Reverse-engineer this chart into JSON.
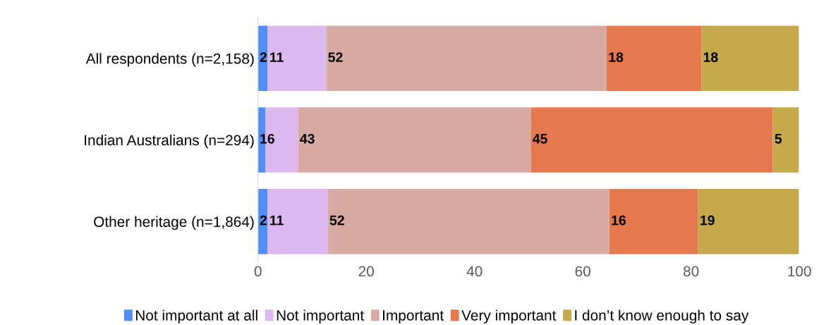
{
  "chart_data": {
    "type": "bar",
    "orientation": "horizontal",
    "stacked": true,
    "categories": [
      "All respondents (n=2,158)",
      "Indian Australians (n=294)",
      "Other heritage (n=1,864)"
    ],
    "series": [
      {
        "name": "Not important at all",
        "color": "#4f8ff7",
        "values": [
          1.8,
          1.4,
          1.8
        ],
        "value_labels": [
          "2",
          "1",
          "2"
        ]
      },
      {
        "name": "Not important",
        "color": "#dcb8ef",
        "values": [
          10.8,
          6.0,
          11.1
        ],
        "value_labels": [
          "11",
          "6",
          "11"
        ]
      },
      {
        "name": "Important",
        "color": "#d8aaa4",
        "values": [
          51.8,
          43.0,
          52.0
        ],
        "value_labels": [
          "52",
          "43",
          "52"
        ]
      },
      {
        "name": "Very important",
        "color": "#e5784e",
        "values": [
          17.5,
          44.7,
          16.4
        ],
        "value_labels": [
          "18",
          "45",
          "16"
        ]
      },
      {
        "name": "I don’t know enough to say",
        "color": "#c6a94a",
        "values": [
          18.0,
          4.8,
          18.6
        ],
        "value_labels": [
          "18",
          "5",
          "19"
        ]
      }
    ],
    "xlim": [
      0,
      100
    ],
    "xticks": [
      0,
      20,
      40,
      60,
      80,
      100
    ],
    "grid": false,
    "legend": "bottom"
  }
}
